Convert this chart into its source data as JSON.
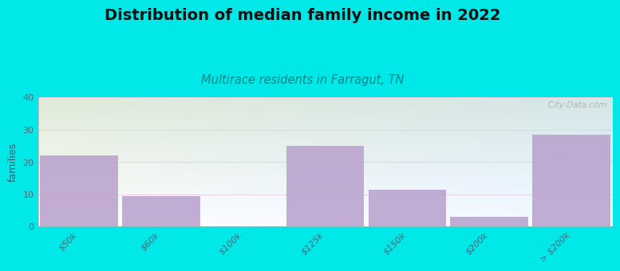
{
  "title": "Distribution of median family income in 2022",
  "subtitle": "Multirace residents in Farragut, TN",
  "categories": [
    "$50k",
    "$60k",
    "$100k",
    "$125k",
    "$150k",
    "$200k",
    "> $200k"
  ],
  "values": [
    22,
    9.5,
    0,
    25,
    11.5,
    3,
    28.5
  ],
  "bar_color": "#b8a0cc",
  "background_color": "#00e8e8",
  "ylabel": "families",
  "ylim": [
    0,
    40
  ],
  "yticks": [
    0,
    10,
    20,
    30,
    40
  ],
  "title_fontsize": 14,
  "subtitle_fontsize": 10.5,
  "subtitle_color": "#008888",
  "watermark": "  City-Data.com",
  "grid_color": "#ddd0e8",
  "bar_width": 0.95,
  "title_color": "#111111"
}
